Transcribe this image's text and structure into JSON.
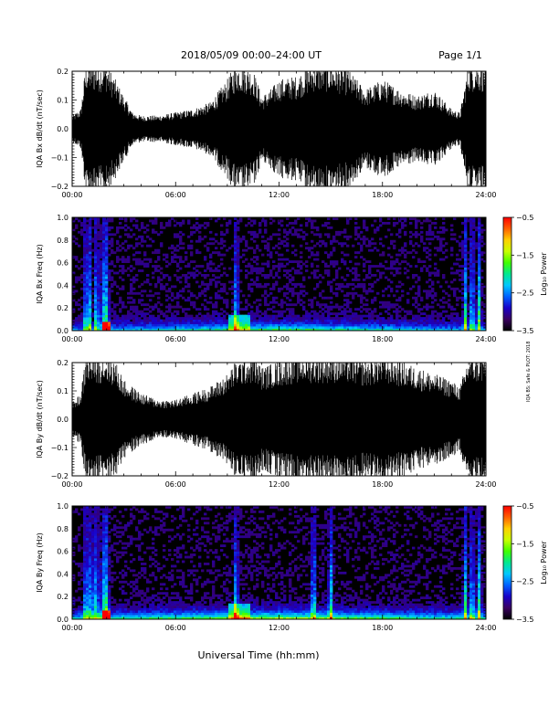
{
  "header": {
    "title": "2018/05/09   00:00–24:00 UT",
    "page": "Page 1/1"
  },
  "xlabel": "Universal Time (hh:mm)",
  "side_note": "IQA BS: Safe & PLOT: 2018",
  "chart_data": [
    {
      "type": "line",
      "name": "bx-waveform",
      "ylabel": "IQA Bx dB/dt (nT/sec)",
      "xlim": [
        0,
        24
      ],
      "ylim": [
        -0.2,
        0.2
      ],
      "xticks": [
        "00:00",
        "06:00",
        "12:00",
        "18:00",
        "24:00"
      ],
      "yticks": [
        "−0.2",
        "−0.1",
        "0.0",
        "0.1",
        "0.2"
      ],
      "ytick_values": [
        -0.2,
        -0.1,
        0.0,
        0.1,
        0.2
      ],
      "amplitude_hours": [
        0,
        0.5,
        0.8,
        1.0,
        1.2,
        1.8,
        2.0,
        2.5,
        3.0,
        3.5,
        4.0,
        5.0,
        6.0,
        7.0,
        8.0,
        9.0,
        9.5,
        10.5,
        11.0,
        11.5,
        12.0,
        13.0,
        14.0,
        15.0,
        16.0,
        17.0,
        18.0,
        19.0,
        20.0,
        21.0,
        22.0,
        22.5,
        23.0,
        23.5,
        24.0
      ],
      "amplitude_values": [
        0.04,
        0.06,
        0.2,
        0.2,
        0.2,
        0.2,
        0.2,
        0.15,
        0.1,
        0.05,
        0.04,
        0.04,
        0.05,
        0.06,
        0.08,
        0.15,
        0.2,
        0.18,
        0.1,
        0.12,
        0.15,
        0.16,
        0.2,
        0.2,
        0.18,
        0.12,
        0.15,
        0.12,
        0.1,
        0.12,
        0.06,
        0.05,
        0.2,
        0.2,
        0.2
      ]
    },
    {
      "type": "heatmap",
      "name": "bx-spectrogram",
      "ylabel": "IQA Bx Freq (Hz)",
      "xlim": [
        0,
        24
      ],
      "ylim": [
        0,
        1.0
      ],
      "xticks": [
        "00:00",
        "06:00",
        "12:00",
        "18:00",
        "24:00"
      ],
      "yticks": [
        "0.0",
        "0.2",
        "0.4",
        "0.6",
        "0.8",
        "1.0"
      ],
      "ytick_values": [
        0.0,
        0.2,
        0.4,
        0.6,
        0.8,
        1.0
      ],
      "colorbar": {
        "label": "Log₁₀ Power",
        "range": [
          -3.5,
          -0.5
        ],
        "ticks": [
          "−0.5",
          "−1.5",
          "−2.5",
          "−3.5"
        ],
        "tick_values": [
          -0.5,
          -1.5,
          -2.5,
          -3.5
        ],
        "colors": [
          "#000000",
          "#3a0060",
          "#1a00c8",
          "#0060ff",
          "#00c8ff",
          "#00e890",
          "#40ff00",
          "#c8ff00",
          "#ffd000",
          "#ff6000",
          "#ff0000"
        ]
      },
      "bursts_hours": [
        0.8,
        1.0,
        1.4,
        1.8,
        2.0,
        9.5,
        22.8,
        23.2,
        23.6
      ],
      "low_band_strength": [
        0.2,
        0.3,
        0.4,
        0.3,
        0.2
      ]
    },
    {
      "type": "line",
      "name": "by-waveform",
      "ylabel": "IQA By dB/dt (nT/sec)",
      "xlim": [
        0,
        24
      ],
      "ylim": [
        -0.2,
        0.2
      ],
      "xticks": [
        "00:00",
        "06:00",
        "12:00",
        "18:00",
        "24:00"
      ],
      "yticks": [
        "−0.2",
        "−0.1",
        "0.0",
        "0.1",
        "0.2"
      ],
      "ytick_values": [
        -0.2,
        -0.1,
        0.0,
        0.1,
        0.2
      ],
      "amplitude_hours": [
        0,
        0.5,
        0.8,
        1.0,
        1.5,
        2.0,
        2.5,
        3.0,
        3.5,
        4.0,
        5.0,
        6.0,
        7.0,
        8.0,
        9.0,
        9.5,
        10.5,
        11.0,
        12.0,
        13.0,
        14.0,
        15.0,
        16.0,
        17.0,
        18.0,
        19.0,
        20.0,
        21.0,
        22.0,
        22.5,
        23.0,
        24.0
      ],
      "amplitude_values": [
        0.05,
        0.08,
        0.2,
        0.2,
        0.2,
        0.2,
        0.18,
        0.12,
        0.1,
        0.08,
        0.06,
        0.06,
        0.08,
        0.1,
        0.14,
        0.18,
        0.2,
        0.16,
        0.18,
        0.2,
        0.2,
        0.2,
        0.2,
        0.18,
        0.2,
        0.18,
        0.16,
        0.14,
        0.12,
        0.1,
        0.2,
        0.2
      ]
    },
    {
      "type": "heatmap",
      "name": "by-spectrogram",
      "ylabel": "IQA By Freq (Hz)",
      "xlim": [
        0,
        24
      ],
      "ylim": [
        0,
        1.0
      ],
      "xticks": [
        "00:00",
        "06:00",
        "12:00",
        "18:00",
        "24:00"
      ],
      "yticks": [
        "0.0",
        "0.2",
        "0.4",
        "0.6",
        "0.8",
        "1.0"
      ],
      "ytick_values": [
        0.0,
        0.2,
        0.4,
        0.6,
        0.8,
        1.0
      ],
      "colorbar": {
        "label": "Log₁₀ Power",
        "range": [
          -3.5,
          -0.5
        ],
        "ticks": [
          "−0.5",
          "−1.5",
          "−2.5",
          "−3.5"
        ],
        "tick_values": [
          -0.5,
          -1.5,
          -2.5,
          -3.5
        ],
        "colors": [
          "#000000",
          "#3a0060",
          "#1a00c8",
          "#0060ff",
          "#00c8ff",
          "#00e890",
          "#40ff00",
          "#c8ff00",
          "#ffd000",
          "#ff6000",
          "#ff0000"
        ]
      },
      "bursts_hours": [
        0.8,
        1.1,
        1.4,
        1.8,
        2.0,
        9.5,
        14.0,
        15.0,
        22.8,
        23.2,
        23.6
      ],
      "low_band_strength": [
        0.3,
        0.4,
        0.5,
        0.4,
        0.3
      ]
    }
  ]
}
